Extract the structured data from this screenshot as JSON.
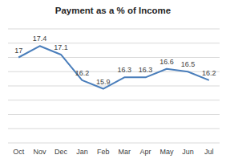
{
  "chart_data": {
    "type": "line",
    "title": "Payment as a % of Income",
    "categories": [
      "Oct",
      "Nov",
      "Dec",
      "Jan",
      "Feb",
      "Mar",
      "Apr",
      "May",
      "Jun",
      "Jul"
    ],
    "values": [
      17,
      17.4,
      17.1,
      16.2,
      15.9,
      16.3,
      16.3,
      16.6,
      16.5,
      16.2
    ],
    "color": "#4a7ebb",
    "ylim": [
      14,
      18
    ],
    "yticks": [
      14,
      14.5,
      15,
      15.5,
      16,
      16.5,
      17,
      17.5,
      18
    ],
    "grid": true,
    "data_labels": true,
    "tick_labels": "x"
  }
}
